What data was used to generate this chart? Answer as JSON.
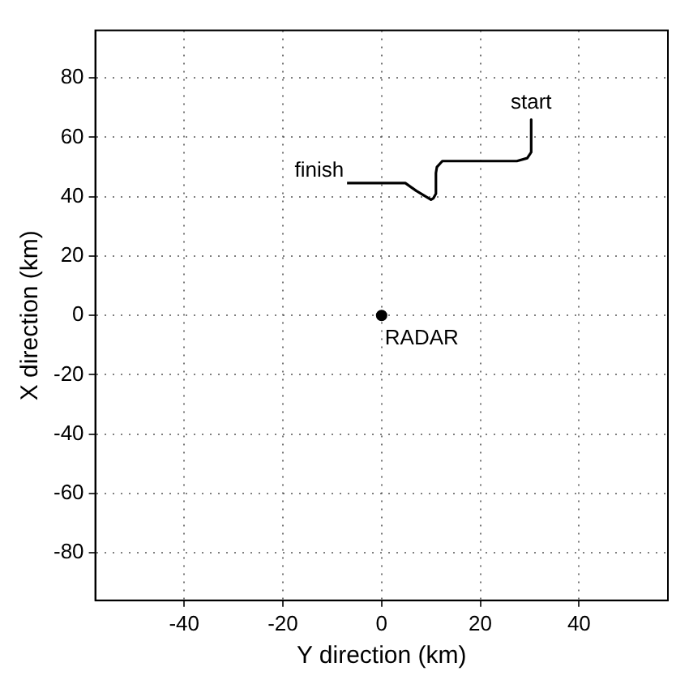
{
  "chart_data": {
    "type": "line",
    "xlabel": "Y direction (km)",
    "ylabel": "X direction (km)",
    "xlim": [
      -58,
      58
    ],
    "ylim": [
      -96,
      96
    ],
    "xticks": [
      -40,
      -20,
      0,
      20,
      40
    ],
    "yticks": [
      -80,
      -60,
      -40,
      -20,
      0,
      20,
      40,
      60,
      80
    ],
    "grid": true,
    "legend": false,
    "marker": "none",
    "line_style": "solid",
    "series": [
      {
        "color": "#000000",
        "x": [
          30.3,
          30.3,
          29.5,
          27.4,
          20,
          12.3,
          11.2,
          11,
          11,
          10.5,
          10,
          7,
          4.8,
          0,
          -7
        ],
        "values": [
          66,
          55,
          53,
          52,
          52,
          52,
          50,
          48,
          41,
          39.5,
          39,
          42,
          44.6,
          44.6,
          44.6
        ]
      },
      {
        "type": "scatter",
        "color": "#000000",
        "marker": "circle",
        "x": [
          0
        ],
        "values": [
          0
        ]
      }
    ],
    "annotations": [
      {
        "text": "start",
        "x": 30.3,
        "y": 66
      },
      {
        "text": "finish",
        "x": -7,
        "y": 44.6
      },
      {
        "text": "RADAR",
        "x": 0,
        "y": 0
      }
    ]
  }
}
